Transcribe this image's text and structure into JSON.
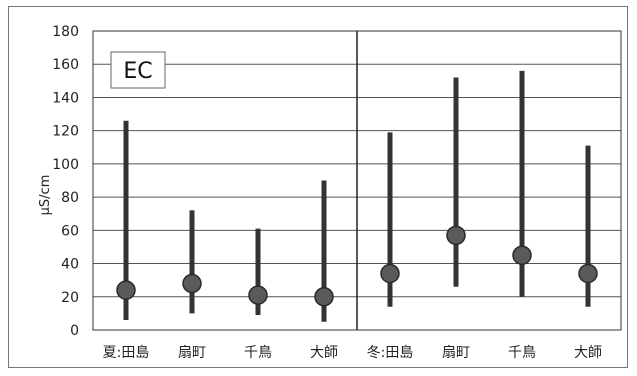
{
  "chart_data": {
    "type": "range-dot",
    "legend_label": "EC",
    "ylabel": "μS/cm",
    "ylim": [
      0,
      180
    ],
    "yticks": [
      0,
      20,
      40,
      60,
      80,
      100,
      120,
      140,
      160,
      180
    ],
    "grid": true,
    "categories": [
      "夏:田島",
      "扇町",
      "千鳥",
      "大師",
      "冬:田島",
      "扇町",
      "千鳥",
      "大師"
    ],
    "series": [
      {
        "min": [
          6,
          10,
          9,
          5,
          14,
          26,
          20,
          14
        ],
        "max": [
          126,
          72,
          61,
          90,
          119,
          152,
          156,
          111
        ],
        "mean": [
          24,
          28,
          21,
          20,
          34,
          57,
          45,
          34
        ]
      }
    ],
    "colors": {
      "bar": "#333333",
      "dot": "#5a5a5a",
      "grid": "#555555",
      "text": "#222222"
    }
  }
}
